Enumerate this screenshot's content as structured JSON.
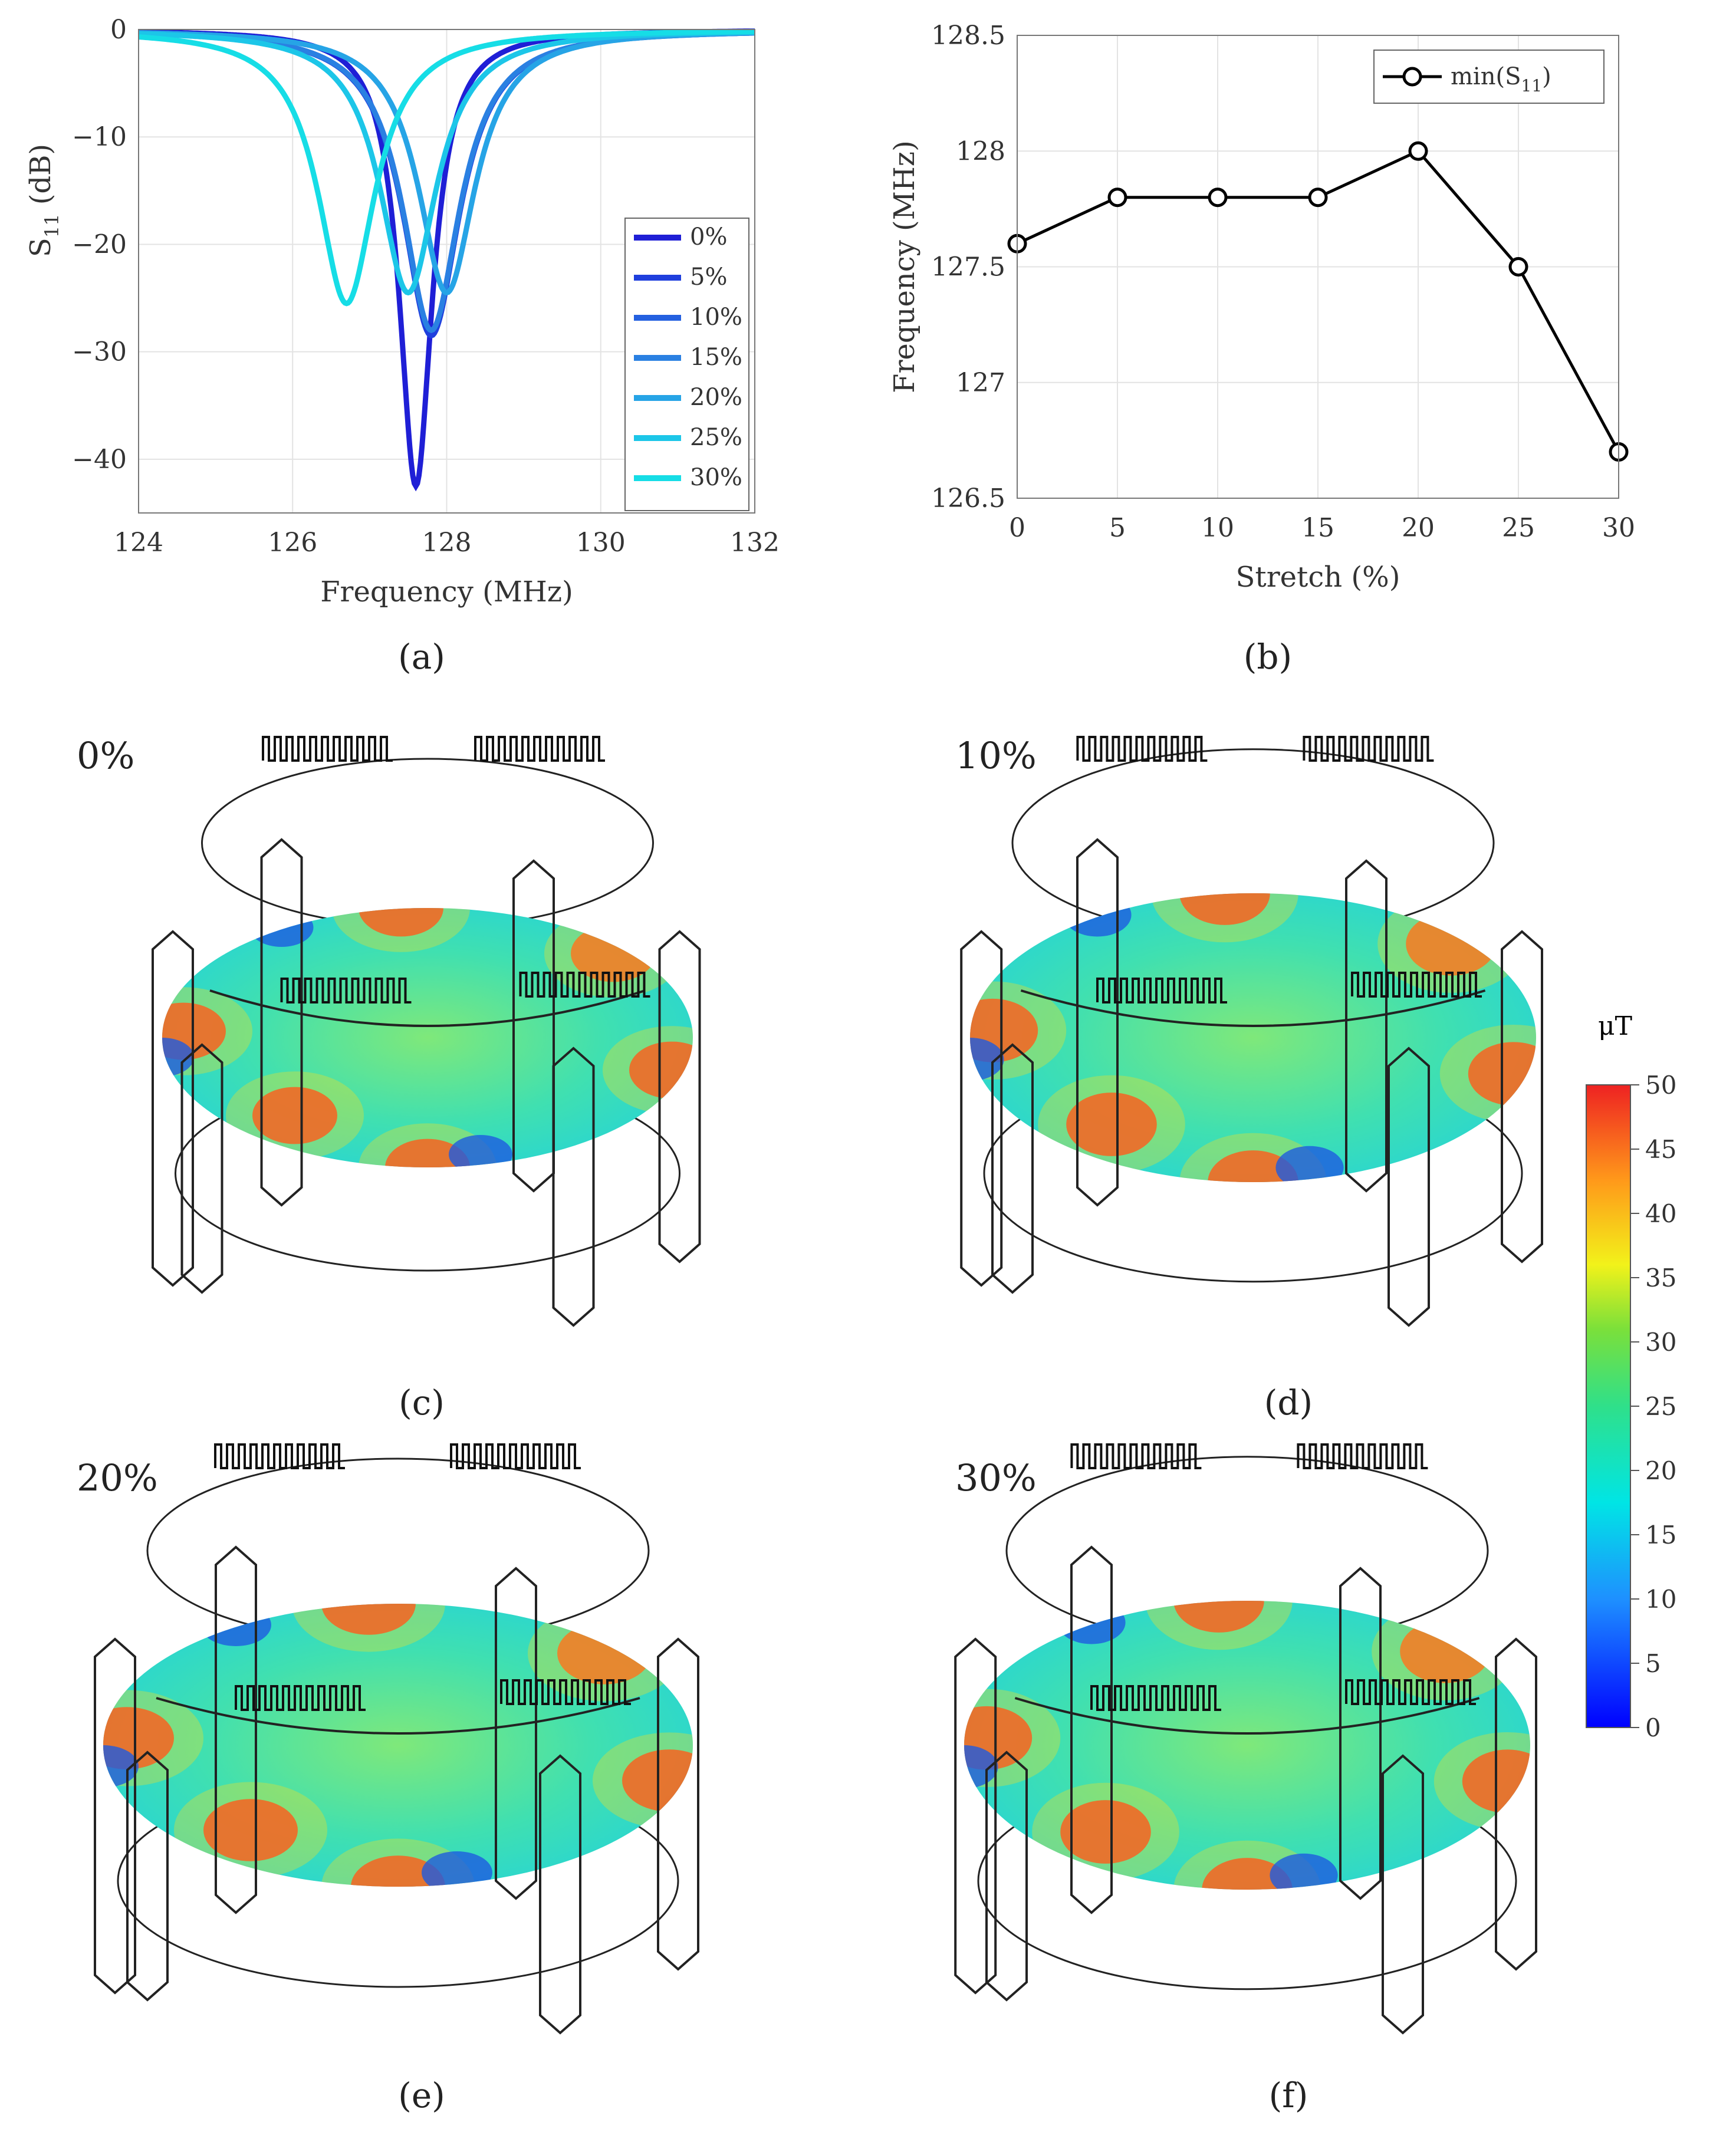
{
  "panels": {
    "a": {
      "caption": "(a)",
      "chart_data": {
        "type": "line",
        "title": "",
        "xlabel": "Frequency (MHz)",
        "ylabel": "S",
        "ylabel_sub": "11",
        "ylabel_unit": "(dB)",
        "xlim": [
          124,
          132
        ],
        "ylim": [
          -45,
          0
        ],
        "xticks": [
          "124",
          "126",
          "128",
          "130",
          "132"
        ],
        "yticks": [
          "0",
          "−10",
          "−20",
          "−30",
          "−40"
        ],
        "grid": true,
        "legend_position": "right",
        "series": [
          {
            "name": "0%",
            "color": "#1f1fd6",
            "f0": 127.6,
            "min": -42.5
          },
          {
            "name": "5%",
            "color": "#1f3fdd",
            "f0": 127.8,
            "min": -28.5
          },
          {
            "name": "10%",
            "color": "#2460e0",
            "f0": 127.8,
            "min": -28.0
          },
          {
            "name": "15%",
            "color": "#2a80e2",
            "f0": 127.8,
            "min": -28.0
          },
          {
            "name": "20%",
            "color": "#26a4e6",
            "f0": 128.0,
            "min": -24.5
          },
          {
            "name": "25%",
            "color": "#1cc6e8",
            "f0": 127.5,
            "min": -24.5
          },
          {
            "name": "30%",
            "color": "#16dde6",
            "f0": 126.7,
            "min": -25.5
          }
        ]
      }
    },
    "b": {
      "caption": "(b)",
      "chart_data": {
        "type": "line",
        "title": "",
        "xlabel": "Stretch (%)",
        "ylabel": "Frequency (MHz)",
        "xlim": [
          0,
          30
        ],
        "ylim": [
          126.5,
          128.5
        ],
        "xticks": [
          "0",
          "5",
          "10",
          "15",
          "20",
          "25",
          "30"
        ],
        "yticks": [
          "128.5",
          "128",
          "127.5",
          "127",
          "126.5"
        ],
        "grid": true,
        "legend_position": "top-right",
        "legend": "min(S",
        "legend_sub": "11",
        "legend_close": ")",
        "x": [
          0,
          5,
          10,
          15,
          20,
          25,
          30
        ],
        "y": [
          127.6,
          127.8,
          127.8,
          127.8,
          128.0,
          127.5,
          126.7
        ],
        "color": "#000000"
      }
    },
    "c": {
      "caption": "(c)",
      "stretch": "0%"
    },
    "d": {
      "caption": "(d)",
      "stretch": "10%"
    },
    "e": {
      "caption": "(e)",
      "stretch": "20%"
    },
    "f": {
      "caption": "(f)",
      "stretch": "30%"
    }
  },
  "colorbar": {
    "unit": "μT",
    "ticks": [
      "50",
      "45",
      "40",
      "35",
      "30",
      "25",
      "20",
      "15",
      "10",
      "5",
      "0"
    ],
    "range": [
      0,
      50
    ]
  }
}
